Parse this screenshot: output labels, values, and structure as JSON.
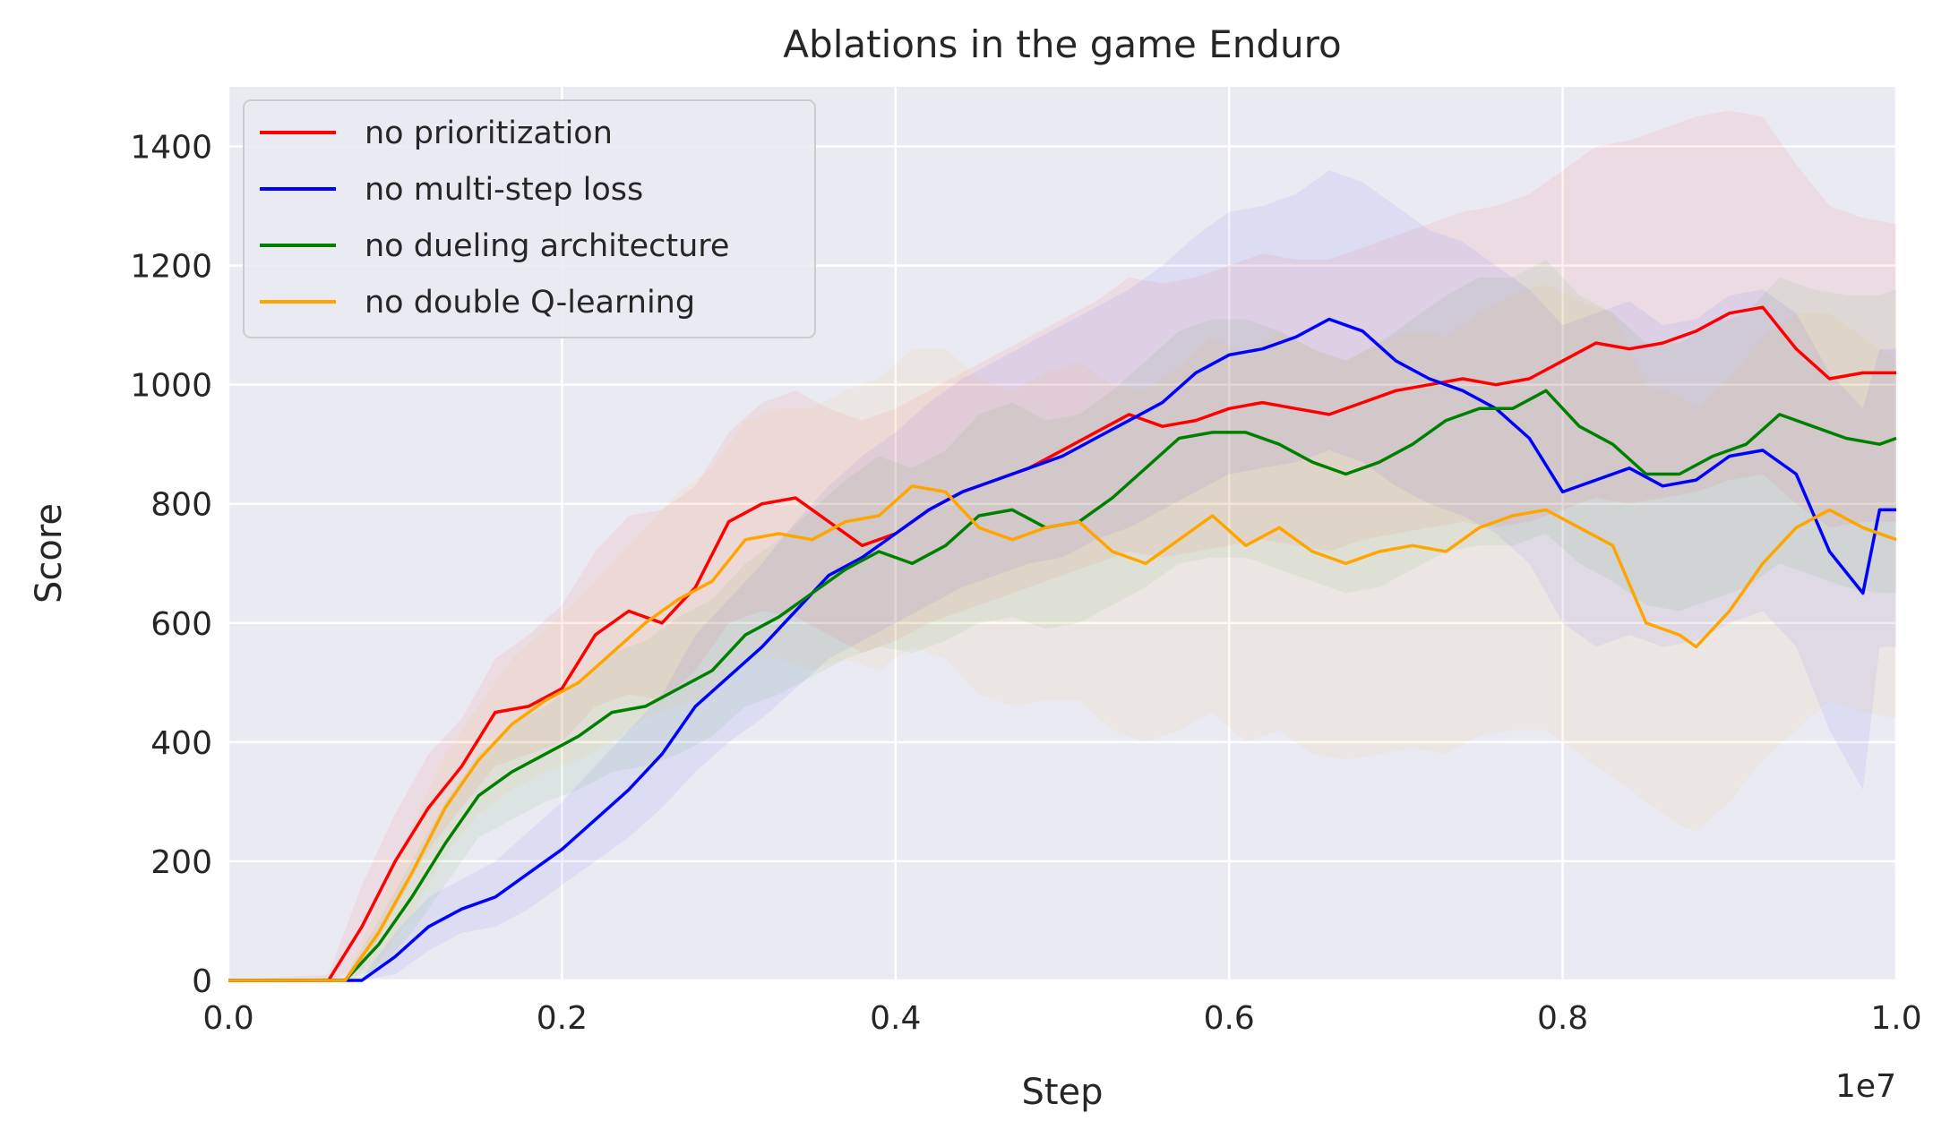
{
  "chart_data": {
    "type": "line",
    "title": "Ablations in the game Enduro",
    "xlabel": "Step",
    "ylabel": "Score",
    "x_offset_label": "1e7",
    "xlim": [
      0,
      1.0
    ],
    "ylim": [
      0,
      1500
    ],
    "x_ticks": [
      0.0,
      0.2,
      0.4,
      0.6,
      0.8,
      1.0
    ],
    "x_tick_labels": [
      "0.0",
      "0.2",
      "0.4",
      "0.6",
      "0.8",
      "1.0"
    ],
    "y_ticks": [
      0,
      200,
      400,
      600,
      800,
      1000,
      1200,
      1400
    ],
    "y_tick_labels": [
      "0",
      "200",
      "400",
      "600",
      "800",
      "1000",
      "1200",
      "1400"
    ],
    "grid": true,
    "legend_position": "top-left",
    "background_color": "#eaeaf2",
    "series": [
      {
        "name": "no prioritization",
        "color": "#ff0000",
        "x": [
          0.0,
          0.06,
          0.08,
          0.1,
          0.12,
          0.14,
          0.16,
          0.18,
          0.2,
          0.22,
          0.24,
          0.26,
          0.28,
          0.3,
          0.32,
          0.34,
          0.36,
          0.38,
          0.4,
          0.42,
          0.44,
          0.46,
          0.48,
          0.5,
          0.52,
          0.54,
          0.56,
          0.58,
          0.6,
          0.62,
          0.64,
          0.66,
          0.68,
          0.7,
          0.72,
          0.74,
          0.76,
          0.78,
          0.8,
          0.82,
          0.84,
          0.86,
          0.88,
          0.9,
          0.92,
          0.94,
          0.96,
          0.98,
          1.0
        ],
        "y": [
          0,
          0,
          90,
          200,
          290,
          360,
          450,
          460,
          490,
          580,
          620,
          600,
          660,
          770,
          800,
          810,
          770,
          730,
          750,
          790,
          820,
          840,
          860,
          890,
          920,
          950,
          930,
          940,
          960,
          970,
          960,
          950,
          970,
          990,
          1000,
          1010,
          1000,
          1010,
          1040,
          1070,
          1060,
          1070,
          1090,
          1120,
          1130,
          1060,
          1010,
          1020,
          1020
        ],
        "lower": [
          0,
          0,
          20,
          120,
          220,
          290,
          360,
          380,
          400,
          460,
          480,
          470,
          520,
          600,
          620,
          610,
          580,
          550,
          570,
          600,
          620,
          640,
          660,
          680,
          700,
          720,
          710,
          720,
          730,
          740,
          730,
          720,
          740,
          750,
          760,
          770,
          760,
          770,
          790,
          810,
          800,
          810,
          820,
          840,
          850,
          800,
          760,
          770,
          770
        ],
        "upper": [
          0,
          10,
          160,
          280,
          380,
          440,
          540,
          580,
          630,
          720,
          780,
          790,
          830,
          920,
          970,
          990,
          960,
          940,
          960,
          990,
          1020,
          1050,
          1080,
          1110,
          1140,
          1180,
          1170,
          1180,
          1200,
          1220,
          1210,
          1210,
          1230,
          1250,
          1270,
          1290,
          1300,
          1320,
          1360,
          1400,
          1410,
          1430,
          1450,
          1460,
          1450,
          1370,
          1300,
          1280,
          1270
        ]
      },
      {
        "name": "no multi-step loss",
        "color": "#0000ff",
        "x": [
          0.0,
          0.08,
          0.1,
          0.12,
          0.14,
          0.16,
          0.18,
          0.2,
          0.22,
          0.24,
          0.26,
          0.28,
          0.3,
          0.32,
          0.34,
          0.36,
          0.38,
          0.4,
          0.42,
          0.44,
          0.46,
          0.48,
          0.5,
          0.52,
          0.54,
          0.56,
          0.58,
          0.6,
          0.62,
          0.64,
          0.66,
          0.68,
          0.7,
          0.72,
          0.74,
          0.76,
          0.78,
          0.8,
          0.82,
          0.84,
          0.86,
          0.88,
          0.9,
          0.92,
          0.94,
          0.96,
          0.98,
          0.99,
          1.0
        ],
        "y": [
          0,
          0,
          40,
          90,
          120,
          140,
          180,
          220,
          270,
          320,
          380,
          460,
          510,
          560,
          620,
          680,
          710,
          750,
          790,
          820,
          840,
          860,
          880,
          910,
          940,
          970,
          1020,
          1050,
          1060,
          1080,
          1110,
          1090,
          1040,
          1010,
          990,
          960,
          910,
          820,
          840,
          860,
          830,
          840,
          880,
          890,
          850,
          720,
          650,
          790,
          790
        ],
        "lower": [
          0,
          0,
          10,
          50,
          80,
          90,
          120,
          160,
          200,
          240,
          290,
          350,
          400,
          440,
          490,
          540,
          570,
          600,
          630,
          660,
          680,
          700,
          710,
          740,
          760,
          790,
          820,
          850,
          860,
          870,
          890,
          870,
          830,
          800,
          780,
          750,
          700,
          600,
          560,
          580,
          560,
          570,
          600,
          620,
          560,
          420,
          320,
          560,
          560
        ],
        "upper": [
          0,
          5,
          80,
          140,
          170,
          200,
          250,
          300,
          360,
          420,
          480,
          580,
          640,
          700,
          770,
          830,
          880,
          920,
          970,
          1010,
          1040,
          1070,
          1100,
          1130,
          1160,
          1200,
          1250,
          1290,
          1300,
          1320,
          1360,
          1340,
          1300,
          1260,
          1240,
          1200,
          1160,
          1100,
          1120,
          1140,
          1100,
          1110,
          1150,
          1160,
          1120,
          1020,
          960,
          1060,
          1060
        ]
      },
      {
        "name": "no dueling architecture",
        "color": "#008000",
        "x": [
          0.0,
          0.07,
          0.09,
          0.11,
          0.13,
          0.15,
          0.17,
          0.19,
          0.21,
          0.23,
          0.25,
          0.27,
          0.29,
          0.31,
          0.33,
          0.35,
          0.37,
          0.39,
          0.41,
          0.43,
          0.45,
          0.47,
          0.49,
          0.51,
          0.53,
          0.55,
          0.57,
          0.59,
          0.61,
          0.63,
          0.65,
          0.67,
          0.69,
          0.71,
          0.73,
          0.75,
          0.77,
          0.79,
          0.81,
          0.83,
          0.85,
          0.87,
          0.89,
          0.91,
          0.93,
          0.95,
          0.97,
          0.99,
          1.0
        ],
        "y": [
          0,
          0,
          60,
          140,
          230,
          310,
          350,
          380,
          410,
          450,
          460,
          490,
          520,
          580,
          610,
          650,
          690,
          720,
          700,
          730,
          780,
          790,
          760,
          770,
          810,
          860,
          910,
          920,
          920,
          900,
          870,
          850,
          870,
          900,
          940,
          960,
          960,
          990,
          930,
          900,
          850,
          850,
          880,
          900,
          950,
          930,
          910,
          900,
          910
        ],
        "lower": [
          0,
          0,
          20,
          80,
          160,
          240,
          270,
          300,
          320,
          350,
          360,
          380,
          410,
          460,
          480,
          510,
          540,
          560,
          550,
          570,
          600,
          610,
          590,
          600,
          630,
          660,
          700,
          710,
          710,
          690,
          670,
          650,
          660,
          690,
          720,
          730,
          730,
          750,
          700,
          670,
          630,
          620,
          640,
          660,
          700,
          680,
          660,
          650,
          650
        ],
        "upper": [
          0,
          5,
          100,
          200,
          300,
          380,
          430,
          460,
          500,
          550,
          570,
          610,
          640,
          700,
          740,
          790,
          840,
          880,
          860,
          890,
          950,
          970,
          940,
          950,
          990,
          1040,
          1090,
          1110,
          1110,
          1090,
          1060,
          1040,
          1070,
          1110,
          1150,
          1180,
          1180,
          1210,
          1150,
          1120,
          1070,
          1070,
          1100,
          1120,
          1180,
          1160,
          1150,
          1150,
          1160
        ]
      },
      {
        "name": "no double Q-learning",
        "color": "#ffa500",
        "x": [
          0.0,
          0.07,
          0.09,
          0.11,
          0.13,
          0.15,
          0.17,
          0.19,
          0.21,
          0.23,
          0.25,
          0.27,
          0.29,
          0.31,
          0.33,
          0.35,
          0.37,
          0.39,
          0.41,
          0.43,
          0.45,
          0.47,
          0.49,
          0.51,
          0.53,
          0.55,
          0.57,
          0.59,
          0.61,
          0.63,
          0.65,
          0.67,
          0.69,
          0.71,
          0.73,
          0.75,
          0.77,
          0.79,
          0.81,
          0.83,
          0.85,
          0.87,
          0.88,
          0.9,
          0.92,
          0.94,
          0.96,
          0.98,
          1.0
        ],
        "y": [
          0,
          0,
          80,
          180,
          290,
          370,
          430,
          470,
          500,
          550,
          600,
          640,
          670,
          740,
          750,
          740,
          770,
          780,
          830,
          820,
          760,
          740,
          760,
          770,
          720,
          700,
          740,
          780,
          730,
          760,
          720,
          700,
          720,
          730,
          720,
          760,
          780,
          790,
          760,
          730,
          600,
          580,
          560,
          620,
          700,
          760,
          790,
          760,
          740
        ],
        "lower": [
          0,
          0,
          30,
          110,
          210,
          280,
          320,
          350,
          370,
          400,
          440,
          460,
          480,
          540,
          540,
          520,
          540,
          520,
          560,
          540,
          480,
          460,
          470,
          470,
          420,
          400,
          420,
          450,
          400,
          420,
          380,
          370,
          380,
          390,
          380,
          410,
          420,
          420,
          380,
          340,
          300,
          260,
          250,
          300,
          370,
          420,
          470,
          450,
          440
        ],
        "upper": [
          0,
          5,
          130,
          260,
          380,
          460,
          540,
          590,
          640,
          700,
          760,
          820,
          860,
          940,
          960,
          960,
          990,
          1010,
          1060,
          1060,
          1010,
          990,
          1020,
          1040,
          1000,
          990,
          1030,
          1080,
          1050,
          1090,
          1060,
          1040,
          1070,
          1090,
          1080,
          1120,
          1150,
          1170,
          1140,
          1120,
          1000,
          980,
          960,
          1010,
          1080,
          1120,
          1120,
          1080,
          1040
        ]
      }
    ]
  }
}
